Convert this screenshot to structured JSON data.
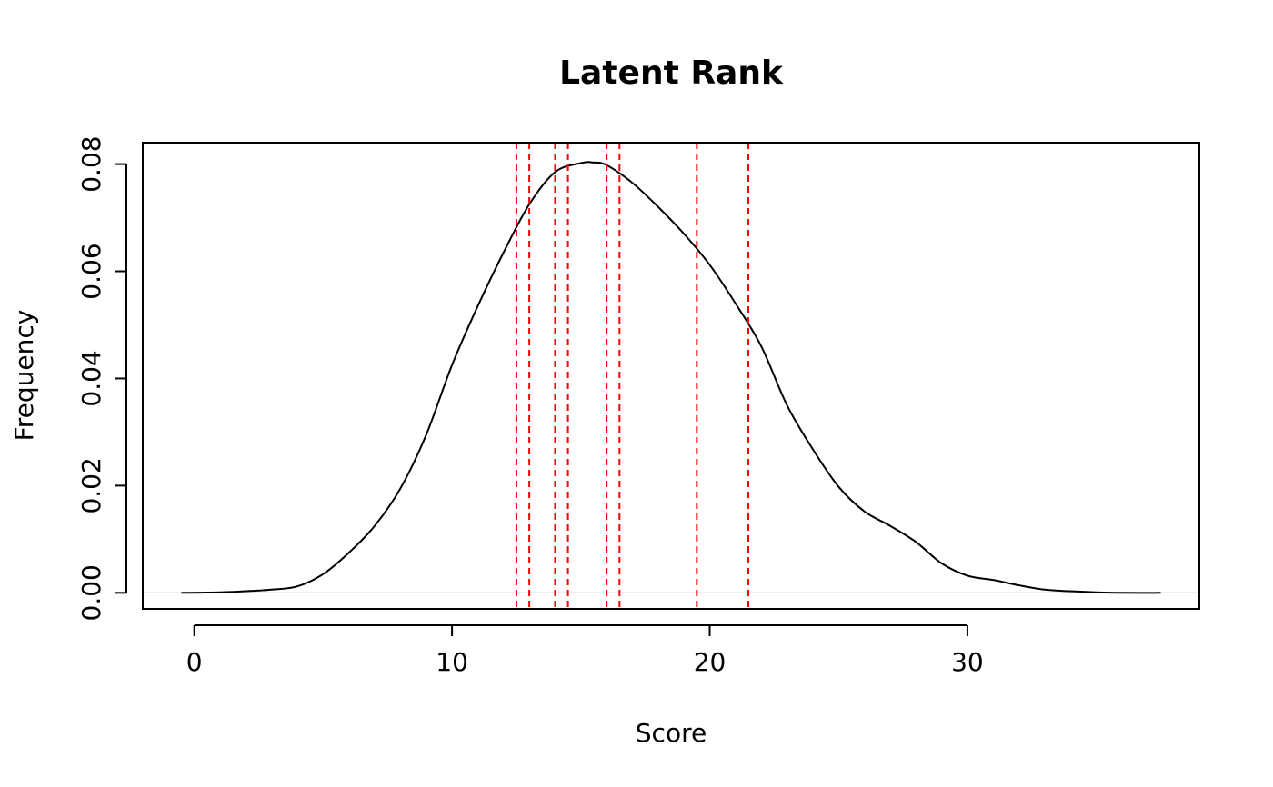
{
  "chart_data": {
    "type": "line",
    "title": "Latent Rank",
    "xlabel": "Score",
    "ylabel": "Frequency",
    "xlim": [
      -2,
      39
    ],
    "ylim": [
      -0.003,
      0.084
    ],
    "x_ticks": [
      0,
      10,
      20,
      30
    ],
    "x_tick_labels": [
      "0",
      "10",
      "20",
      "30"
    ],
    "y_ticks": [
      0.0,
      0.02,
      0.04,
      0.06,
      0.08
    ],
    "y_tick_labels": [
      "0.00",
      "0.02",
      "0.04",
      "0.06",
      "0.08"
    ],
    "grid": false,
    "zero_line_color": "#dddddd",
    "line_color": "#000000",
    "vline_color": "#ff0000",
    "series": [
      {
        "x": [
          -0.5,
          1,
          2,
          3,
          4,
          5,
          6,
          7,
          8,
          9,
          10,
          11,
          12,
          13,
          14,
          15,
          15.5,
          16,
          17,
          18,
          19,
          20,
          21,
          22,
          23,
          24,
          25,
          26,
          27,
          28,
          29,
          30,
          31,
          32,
          33,
          34,
          35,
          36,
          37.5
        ],
        "y": [
          0.0,
          0.0001,
          0.0003,
          0.0006,
          0.0012,
          0.0035,
          0.0075,
          0.0125,
          0.0195,
          0.0295,
          0.0425,
          0.0535,
          0.0635,
          0.0725,
          0.0785,
          0.0802,
          0.0803,
          0.0798,
          0.0765,
          0.072,
          0.067,
          0.0612,
          0.054,
          0.046,
          0.035,
          0.0268,
          0.0198,
          0.0152,
          0.0125,
          0.0095,
          0.0055,
          0.0032,
          0.0024,
          0.0014,
          0.0006,
          0.0003,
          0.0001,
          0.0,
          0.0
        ]
      }
    ],
    "vlines": [
      12.5,
      13.0,
      14.0,
      14.5,
      16.0,
      16.5,
      19.5,
      21.5
    ]
  }
}
